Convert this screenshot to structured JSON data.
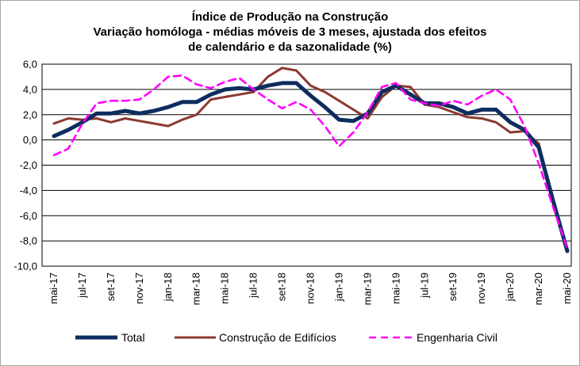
{
  "chart_data": {
    "type": "line",
    "title": "Índice de Produção na Construção",
    "subtitle_line1": "Variação homóloga - médias móveis de 3 meses, ajustada dos efeitos",
    "subtitle_line2": "de calendário e da sazonalidade (%)",
    "xlabel": "",
    "ylabel": "",
    "ylim": [
      -10,
      6
    ],
    "y_ticks": [
      "6,0",
      "4,0",
      "2,0",
      "0,0",
      "-2,0",
      "-4,0",
      "-6,0",
      "-8,0",
      "-10,0"
    ],
    "grid": true,
    "legend_position": "bottom",
    "x_ticks": [
      "mai-17",
      "jul-17",
      "set-17",
      "nov-17",
      "jan-18",
      "mar-18",
      "mai-18",
      "jul-18",
      "set-18",
      "nov-18",
      "jan-19",
      "mar-19",
      "mai-19",
      "jul-19",
      "set-19",
      "nov-19",
      "jan-20",
      "mar-20",
      "mai-20"
    ],
    "categories": [
      "mai-17",
      "jun-17",
      "jul-17",
      "ago-17",
      "set-17",
      "out-17",
      "nov-17",
      "dez-17",
      "jan-18",
      "fev-18",
      "mar-18",
      "abr-18",
      "mai-18",
      "jun-18",
      "jul-18",
      "ago-18",
      "set-18",
      "out-18",
      "nov-18",
      "dez-18",
      "jan-19",
      "fev-19",
      "mar-19",
      "abr-19",
      "mai-19",
      "jun-19",
      "jul-19",
      "ago-19",
      "set-19",
      "out-19",
      "nov-19",
      "dez-19",
      "jan-20",
      "fev-20",
      "mar-20",
      "abr-20",
      "mai-20"
    ],
    "series": [
      {
        "name": "Total",
        "color": "#0d2d5e",
        "values": [
          0.3,
          0.8,
          1.4,
          2.1,
          2.1,
          2.3,
          2.1,
          2.3,
          2.6,
          3.0,
          3.0,
          3.6,
          4.0,
          4.1,
          4.0,
          4.3,
          4.5,
          4.5,
          3.5,
          2.6,
          1.6,
          1.5,
          2.1,
          3.8,
          4.3,
          3.6,
          2.9,
          2.9,
          2.6,
          2.1,
          2.4,
          2.4,
          1.4,
          0.8,
          -0.6,
          -4.8,
          -8.8
        ]
      },
      {
        "name": "Construção de Edifícios",
        "color": "#8b3a30",
        "values": [
          1.3,
          1.7,
          1.6,
          1.7,
          1.4,
          1.7,
          1.5,
          1.3,
          1.1,
          1.6,
          2.0,
          3.2,
          3.4,
          3.6,
          3.8,
          5.0,
          5.7,
          5.5,
          4.3,
          3.8,
          3.1,
          2.4,
          1.7,
          3.4,
          4.3,
          4.2,
          2.8,
          2.6,
          2.2,
          1.8,
          1.7,
          1.4,
          0.6,
          0.7,
          -0.3,
          -5.0,
          -8.7
        ]
      },
      {
        "name": "Engenharia Civil",
        "color": "#ff00ff",
        "values": [
          -1.2,
          -0.7,
          1.3,
          2.9,
          3.1,
          3.1,
          3.2,
          4.0,
          5.0,
          5.1,
          4.4,
          4.1,
          4.6,
          4.9,
          4.0,
          3.2,
          2.5,
          3.0,
          2.4,
          1.1,
          -0.5,
          0.6,
          2.2,
          4.2,
          4.5,
          3.2,
          2.9,
          2.7,
          3.1,
          2.8,
          3.5,
          4.0,
          3.2,
          1.1,
          -1.9,
          -5.3,
          -8.6
        ]
      }
    ]
  }
}
